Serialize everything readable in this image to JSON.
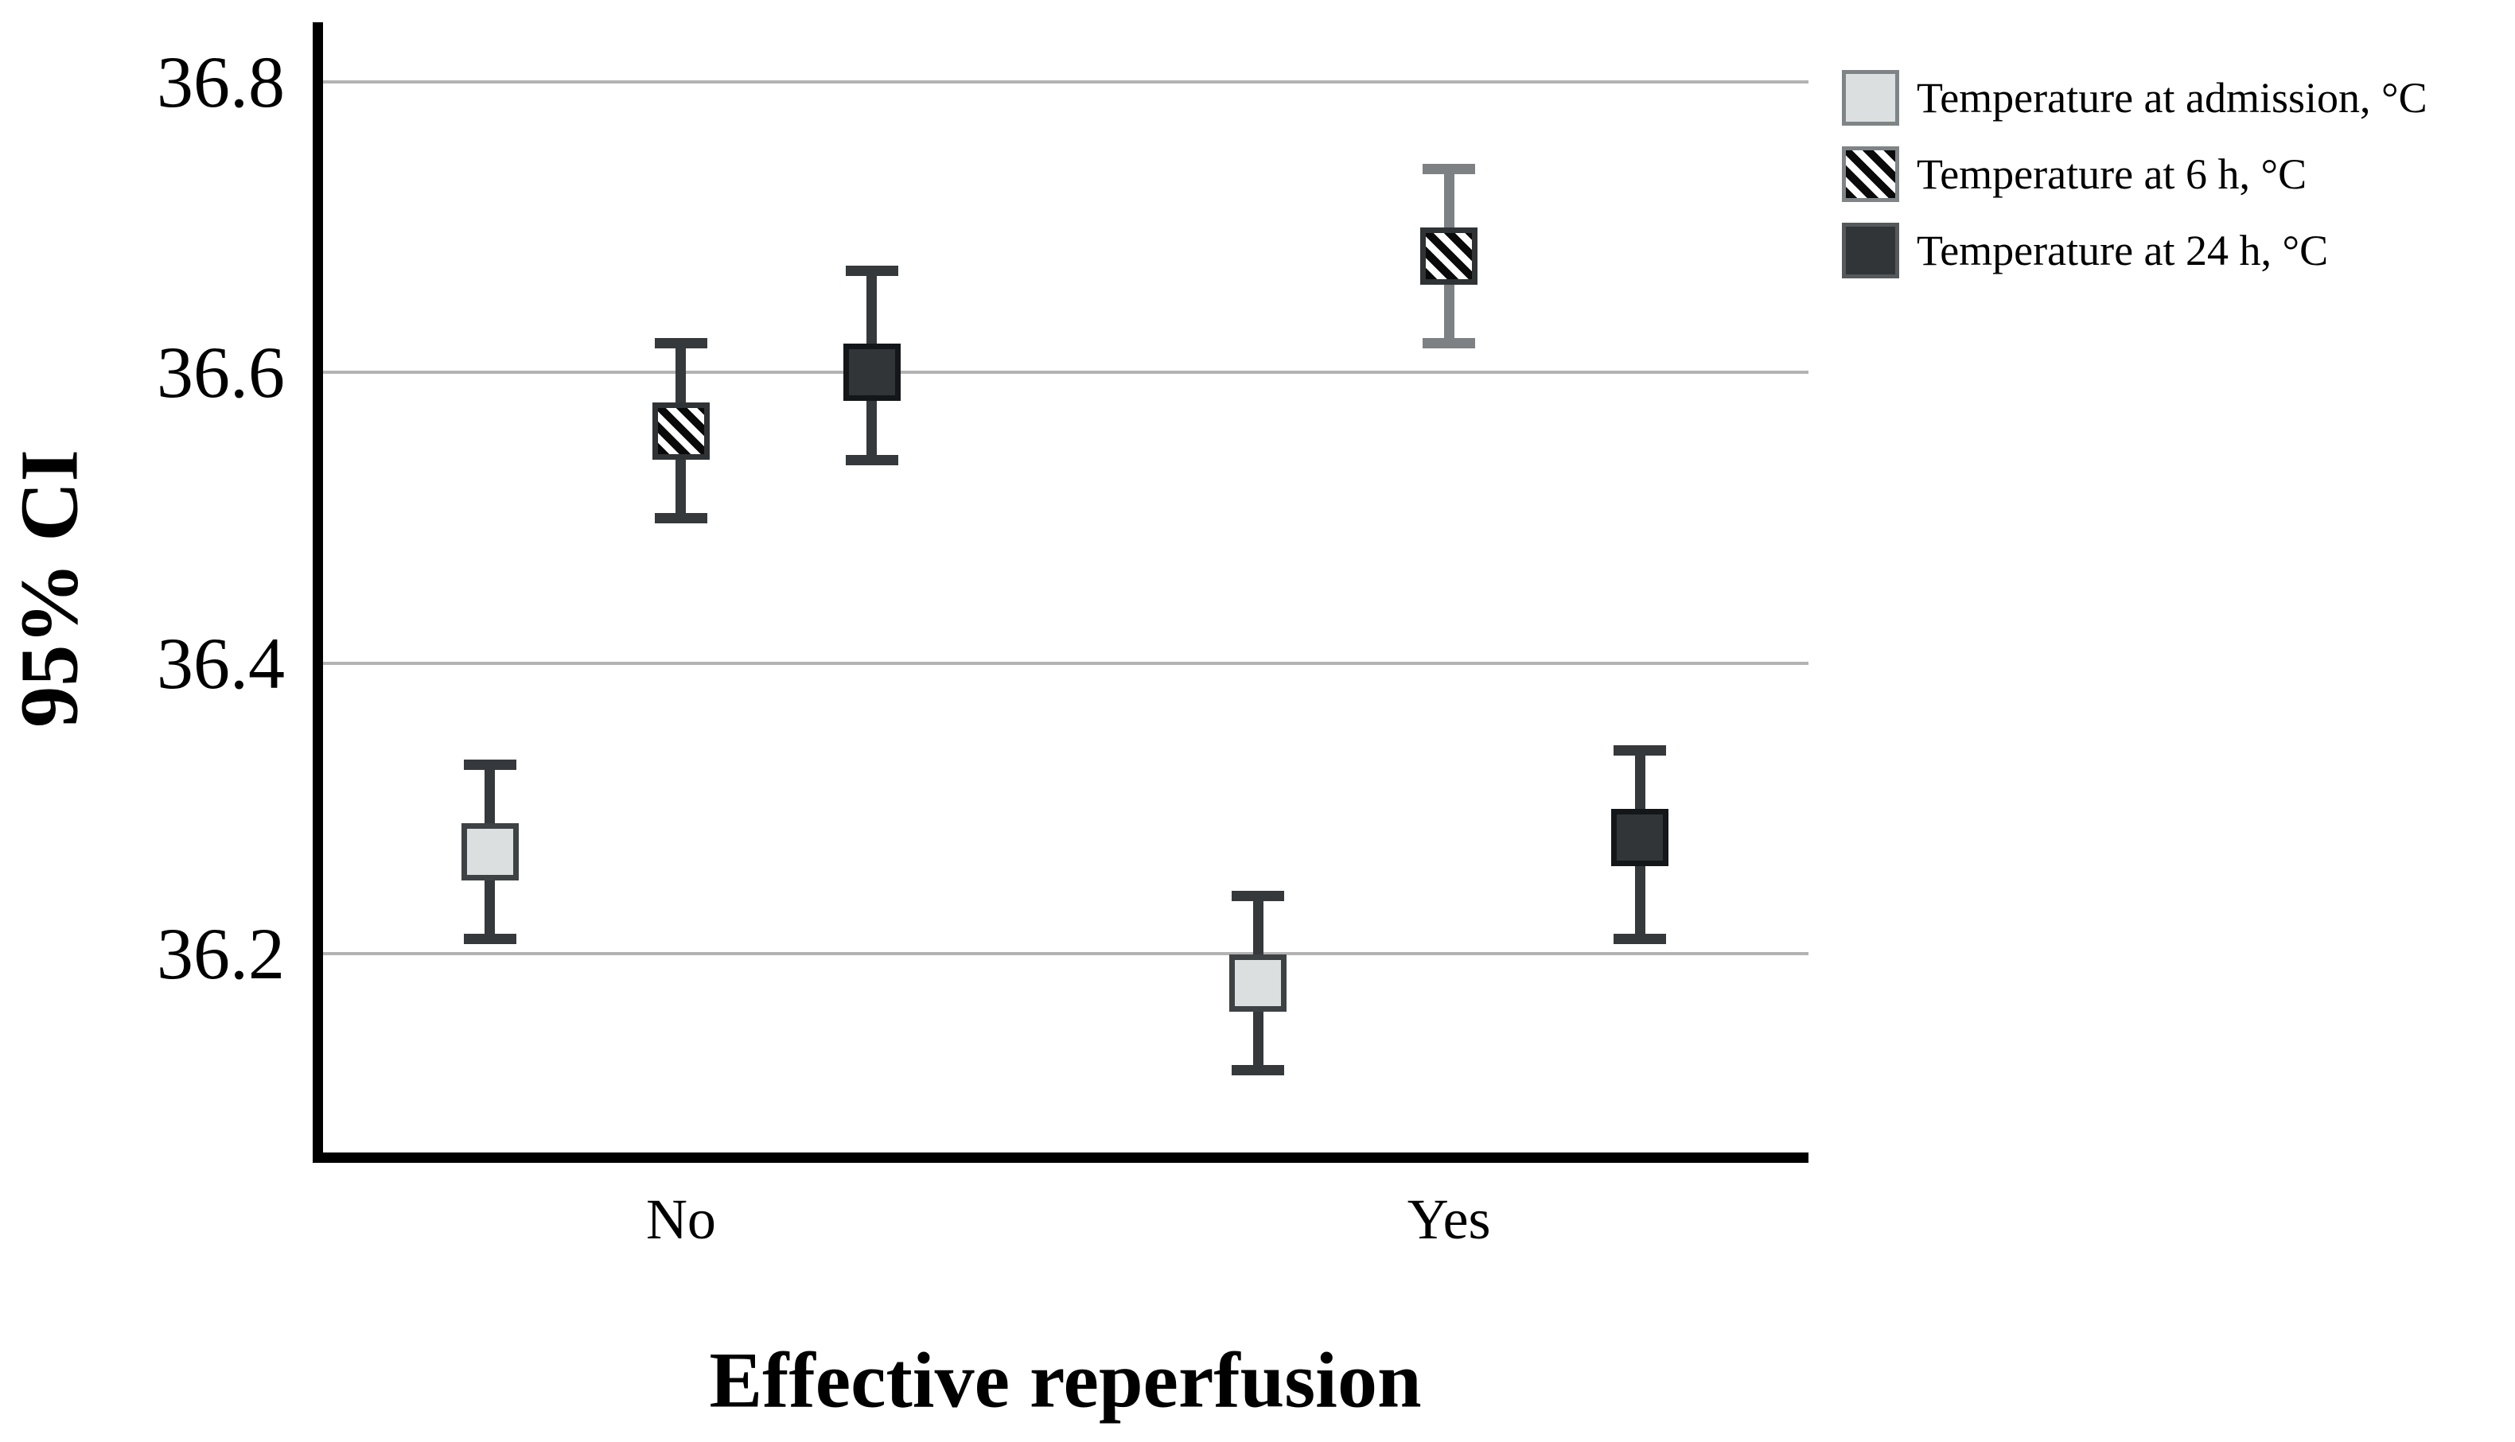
{
  "figure": {
    "background": "#ffffff",
    "y_axis": {
      "title": "95% CI",
      "ticks": [
        {
          "label": "36.8",
          "value": 36.8
        },
        {
          "label": "36.6",
          "value": 36.6
        },
        {
          "label": "36.4",
          "value": 36.4
        },
        {
          "label": "36.2",
          "value": 36.2
        }
      ]
    },
    "x_axis": {
      "title": "Effective reperfusion",
      "categories": [
        "No",
        "Yes"
      ]
    },
    "legend": {
      "items": [
        {
          "label": "Temperature at admission, °C",
          "swatch": "light"
        },
        {
          "label": "Temperature at 6 h, °C",
          "swatch": "hatched"
        },
        {
          "label": "Temperature at 24 h, °C",
          "swatch": "dark"
        }
      ]
    }
  },
  "chart_data": {
    "type": "errorbar",
    "title": "",
    "xlabel": "Effective reperfusion",
    "ylabel": "95% CI",
    "categories": [
      "No",
      "Yes"
    ],
    "ylim": [
      36.06,
      36.84
    ],
    "yticks": [
      36.2,
      36.4,
      36.6,
      36.8
    ],
    "grid": "horizontal",
    "legend_position": "top-right",
    "series": [
      {
        "name": "Temperature at admission, °C",
        "marker": "light-gray-square",
        "points": [
          {
            "category": "No",
            "mean": 36.27,
            "ci_low": 36.21,
            "ci_high": 36.33
          },
          {
            "category": "Yes",
            "mean": 36.18,
            "ci_low": 36.12,
            "ci_high": 36.24
          }
        ]
      },
      {
        "name": "Temperature at 6 h, °C",
        "marker": "black-hatched-square",
        "points": [
          {
            "category": "No",
            "mean": 36.56,
            "ci_low": 36.5,
            "ci_high": 36.62
          },
          {
            "category": "Yes",
            "mean": 36.68,
            "ci_low": 36.62,
            "ci_high": 36.74,
            "bar_shade": "light"
          }
        ]
      },
      {
        "name": "Temperature at 24 h, °C",
        "marker": "dark-gray-square",
        "points": [
          {
            "category": "No",
            "mean": 36.6,
            "ci_low": 36.54,
            "ci_high": 36.67
          },
          {
            "category": "Yes",
            "mean": 36.28,
            "ci_low": 36.21,
            "ci_high": 36.34
          }
        ]
      }
    ],
    "colors": {
      "errorbar": "#35393b",
      "errorbar_light": "#7d8183",
      "gridline": "#b3b3b3",
      "axis": "#000000",
      "admission_fill": "#dcdfe0",
      "admission_border": "#3e4244",
      "hatch_fill": "#ffffff",
      "hatch_stripe": "#0a0a0a",
      "hatch_border": "#2f3335",
      "h24_fill": "#313537",
      "h24_border": "#141719",
      "legend_swatch_border_light": "#7f8486",
      "legend_swatch_border_hatched": "#7f8486",
      "legend_swatch_border_dark": "#55595b"
    }
  }
}
